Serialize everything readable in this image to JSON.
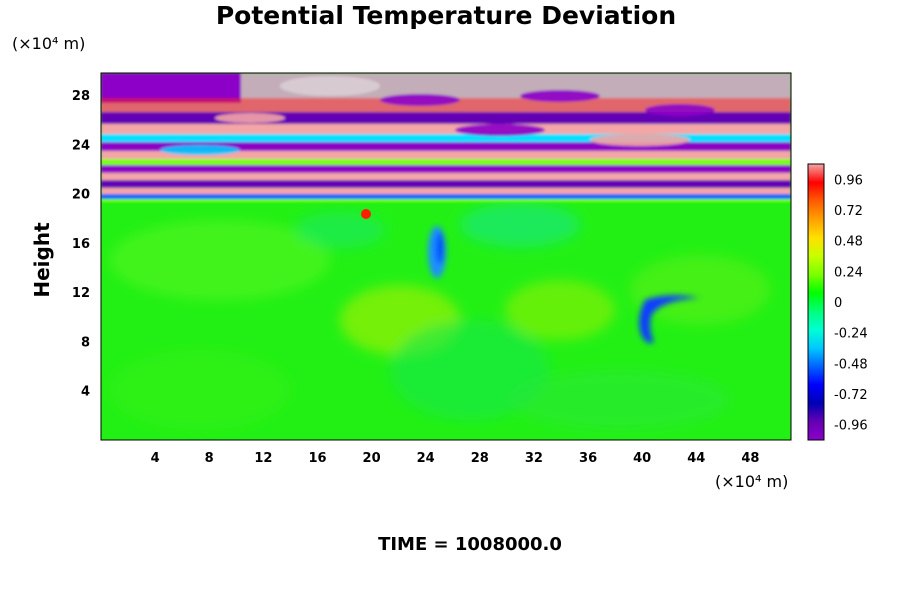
{
  "chart_data": {
    "type": "heatmap",
    "title": "Potential Temperature Deviation",
    "ylabel": "Height",
    "xlabel": "",
    "y_unit": "(×10⁴ m)",
    "x_unit": "(×10⁴ m)",
    "xlim": [
      0,
      51
    ],
    "ylim": [
      0,
      29.8
    ],
    "x_ticks": [
      4,
      8,
      12,
      16,
      20,
      24,
      28,
      32,
      36,
      40,
      44,
      48
    ],
    "y_ticks": [
      4,
      8,
      12,
      16,
      20,
      24,
      28
    ],
    "colorbar": {
      "range": [
        -1.08,
        1.08
      ],
      "ticks": [
        0.96,
        0.72,
        0.48,
        0.24,
        0,
        -0.24,
        -0.48,
        -0.72,
        -0.96
      ],
      "tick_labels": [
        "0.96",
        "0.72",
        "0.48",
        "0.24",
        "0",
        "-0.24",
        "-0.48",
        "-0.72",
        "-0.96"
      ],
      "colors_high_to_low": [
        "#f4a6a6",
        "#ff0000",
        "#ff5a00",
        "#ffa000",
        "#ffe000",
        "#c8ff00",
        "#7cff00",
        "#00ff00",
        "#00ff78",
        "#00ffd2",
        "#00c8ff",
        "#0064ff",
        "#0000ff",
        "#0000b4",
        "#6400b4",
        "#8c00c8"
      ]
    },
    "grid": false,
    "legend": "right"
  },
  "footer": "TIME = 1008000.0"
}
